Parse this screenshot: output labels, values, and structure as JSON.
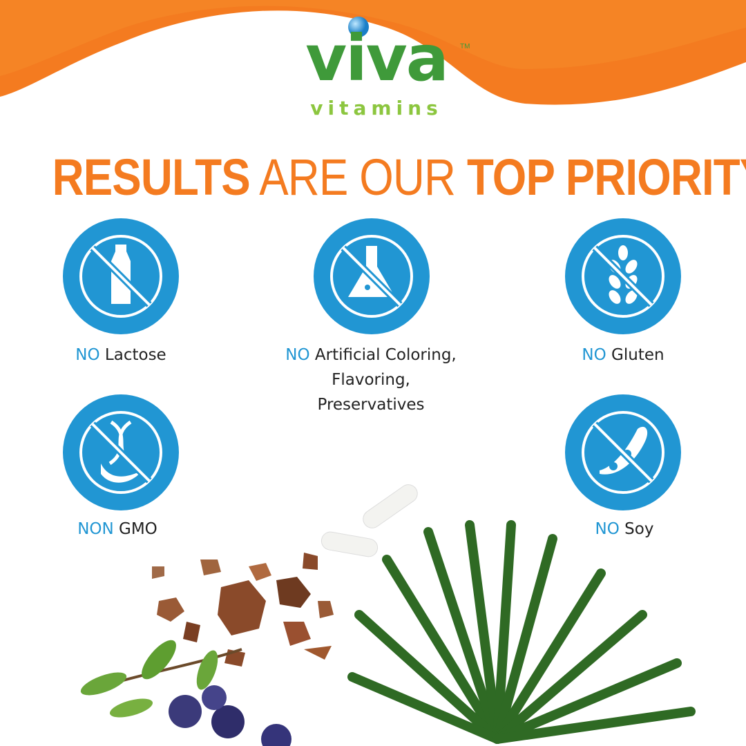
{
  "brand": {
    "name": "viva",
    "sub": "vitamins",
    "tm": "TM"
  },
  "headline": {
    "bold1": "RESULTS",
    "mid": "ARE OUR",
    "bold2": "TOP PRIORITY"
  },
  "colors": {
    "orange": "#f47b20",
    "blue": "#2196d3",
    "green": "#3f9a3a",
    "light_green": "#8cc63f"
  },
  "features": [
    {
      "prefix": "NO",
      "text": "Lactose",
      "icon": "no-milk-bottle-icon"
    },
    {
      "prefix": "NO",
      "text": "Artificial Coloring, Flavoring, Preservatives",
      "icon": "no-chemical-flask-icon"
    },
    {
      "prefix": "NO",
      "text": "Gluten",
      "icon": "no-wheat-icon"
    },
    {
      "prefix": "NON",
      "text": "GMO",
      "icon": "no-dna-icon"
    },
    {
      "prefix": "NO",
      "text": "Soy",
      "icon": "no-soybean-icon"
    }
  ]
}
